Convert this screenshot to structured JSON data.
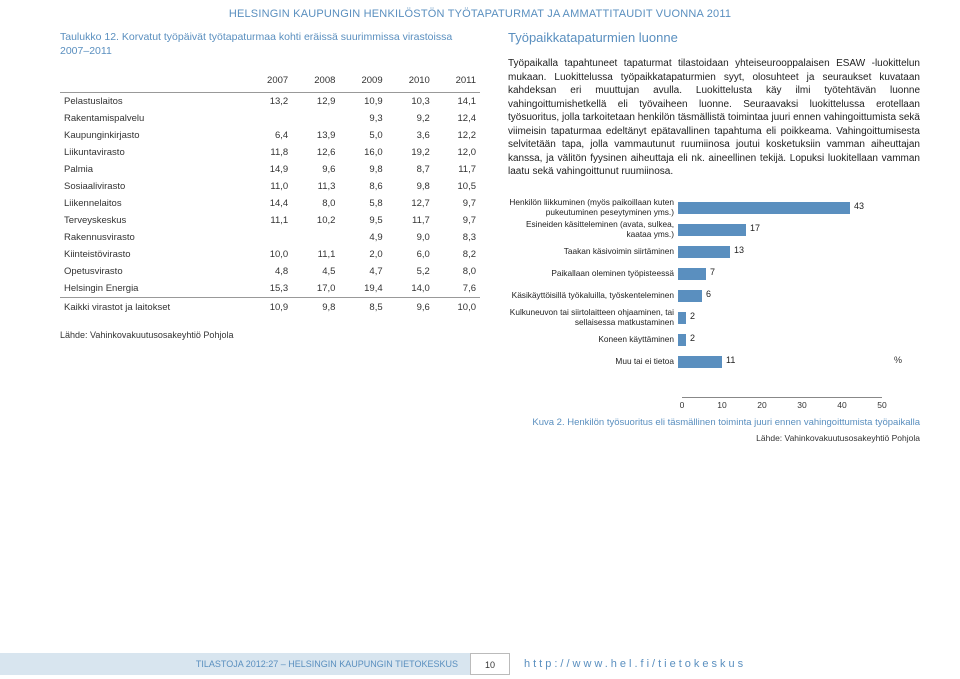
{
  "header": "HELSINGIN KAUPUNGIN HENKILÖSTÖN TYÖTAPATURMAT JA AMMATTITAUDIT VUONNA 2011",
  "table": {
    "caption": "Taulukko 12. Korvatut työpäivät työtapaturmaa kohti eräissä suurimmissa virastoissa 2007–2011",
    "columns": [
      "",
      "2007",
      "2008",
      "2009",
      "2010",
      "2011"
    ],
    "rows": [
      [
        "Pelastuslaitos",
        "13,2",
        "12,9",
        "10,9",
        "10,3",
        "14,1"
      ],
      [
        "Rakentamispalvelu",
        "",
        "",
        "9,3",
        "9,2",
        "12,4"
      ],
      [
        "Kaupunginkirjasto",
        "6,4",
        "13,9",
        "5,0",
        "3,6",
        "12,2"
      ],
      [
        "Liikuntavirasto",
        "11,8",
        "12,6",
        "16,0",
        "19,2",
        "12,0"
      ],
      [
        "Palmia",
        "14,9",
        "9,6",
        "9,8",
        "8,7",
        "11,7"
      ],
      [
        "Sosiaalivirasto",
        "11,0",
        "11,3",
        "8,6",
        "9,8",
        "10,5"
      ],
      [
        "Liikennelaitos",
        "14,4",
        "8,0",
        "5,8",
        "12,7",
        "9,7"
      ],
      [
        "Terveyskeskus",
        "11,1",
        "10,2",
        "9,5",
        "11,7",
        "9,7"
      ],
      [
        "Rakennusvirasto",
        "",
        "",
        "4,9",
        "9,0",
        "8,3"
      ],
      [
        "Kiinteistövirasto",
        "10,0",
        "11,1",
        "2,0",
        "6,0",
        "8,2"
      ],
      [
        "Opetusvirasto",
        "4,8",
        "4,5",
        "4,7",
        "5,2",
        "8,0"
      ],
      [
        "Helsingin Energia",
        "15,3",
        "17,0",
        "19,4",
        "14,0",
        "7,6"
      ]
    ],
    "total_row": [
      "Kaikki virastot ja laitokset",
      "10,9",
      "9,8",
      "8,5",
      "9,6",
      "10,0"
    ],
    "source": "Lähde: Vahinkovakuutusosakeyhtiö Pohjola"
  },
  "right": {
    "title": "Työpaikkatapaturmien luonne",
    "body": "Työpaikalla tapahtuneet tapaturmat tilastoidaan yhteiseurooppalaisen ESAW -luokittelun mukaan. Luokittelussa työpaikkatapaturmien syyt, olosuhteet ja seuraukset kuvataan kahdeksan eri muuttujan avulla. Luokittelusta käy ilmi työtehtävän luonne vahingoittumishetkellä eli työvaiheen luonne. Seuraavaksi luokittelussa erotellaan työsuoritus, jolla tarkoitetaan henkilön täsmällistä toimintaa juuri ennen vahingoittumista sekä viimeisin tapaturmaa edeltänyt epätavallinen tapahtuma eli poikkeama. Vahingoittumisesta selvitetään tapa, jolla vammautunut ruumiinosa joutui kosketuksiin vamman aiheuttajan kanssa, ja välitön fyysinen aiheuttaja eli nk. aineellinen tekijä. Lopuksi luokitellaan vamman laatu sekä vahingoittunut ruumiinosa."
  },
  "chart": {
    "type": "bar-horizontal",
    "xmax": 50,
    "xtick_step": 10,
    "bar_color": "#5a8fbf",
    "unit": "%",
    "items": [
      {
        "label": "Henkilön liikkuminen (myös paikoillaan kuten pukeutuminen peseytyminen yms.)",
        "value": 43
      },
      {
        "label": "Esineiden käsitteleminen (avata, sulkea, kaataa yms.)",
        "value": 17
      },
      {
        "label": "Taakan käsivoimin siirtäminen",
        "value": 13
      },
      {
        "label": "Paikallaan oleminen työpisteessä",
        "value": 7
      },
      {
        "label": "Käsikäyttöisillä työkaluilla, työskenteleminen",
        "value": 6
      },
      {
        "label": "Kulkuneuvon tai siirtolaitteen ohjaaminen, tai sellaisessa matkustaminen",
        "value": 2
      },
      {
        "label": "Koneen käyttäminen",
        "value": 2
      },
      {
        "label": "Muu tai ei tietoa",
        "value": 11
      }
    ],
    "axis_ticks": [
      0,
      10,
      20,
      30,
      40,
      50
    ],
    "caption": "Kuva 2. Henkilön työsuoritus eli täsmällinen toiminta juuri ennen vahingoittumista työpaikalla",
    "source": "Lähde: Vahinkovakuutusosakeyhtiö Pohjola"
  },
  "footer": {
    "left": "TILASTOJA 2012:27 – HELSINGIN KAUPUNGIN TIETOKESKUS",
    "page": "10",
    "right": "http://www.hel.fi/tietokeskus"
  }
}
